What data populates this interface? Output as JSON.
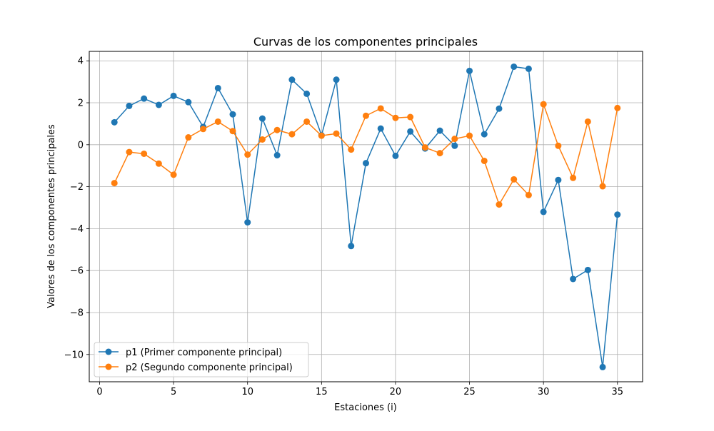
{
  "chart_data": {
    "type": "line",
    "title": "Curvas de los componentes principales",
    "xlabel": "Estaciones (i)",
    "ylabel": "Valores de los componentes principales",
    "xlim": [
      -0.7,
      36.7
    ],
    "ylim": [
      -11.3,
      4.45
    ],
    "xticks": [
      0,
      5,
      10,
      15,
      20,
      25,
      30,
      35
    ],
    "yticks": [
      -10,
      -8,
      -6,
      -4,
      -2,
      0,
      2,
      4
    ],
    "xtick_labels": [
      "0",
      "5",
      "10",
      "15",
      "20",
      "25",
      "30",
      "35"
    ],
    "ytick_labels": [
      "−10",
      "−8",
      "−6",
      "−4",
      "−2",
      "0",
      "2",
      "4"
    ],
    "grid": true,
    "legend_position": "lower-left",
    "x": [
      1,
      2,
      3,
      4,
      5,
      6,
      7,
      8,
      9,
      10,
      11,
      12,
      13,
      14,
      15,
      16,
      17,
      18,
      19,
      20,
      21,
      22,
      23,
      24,
      25,
      26,
      27,
      28,
      29,
      30,
      31,
      32,
      33,
      34,
      35
    ],
    "series": [
      {
        "name": "p1 (Primer componente principal)",
        "color": "#1f77b4",
        "values": [
          1.07,
          1.85,
          2.2,
          1.9,
          2.33,
          2.03,
          0.85,
          2.7,
          1.45,
          -3.7,
          1.25,
          -0.5,
          3.1,
          2.43,
          0.45,
          3.1,
          -4.83,
          -0.88,
          0.77,
          -0.53,
          0.63,
          -0.18,
          0.67,
          -0.05,
          3.52,
          0.5,
          1.72,
          3.72,
          3.62,
          -3.2,
          -1.68,
          -6.4,
          -5.97,
          -10.6,
          -3.33
        ]
      },
      {
        "name": "p2 (Segundo componente principal)",
        "color": "#ff7f0e",
        "values": [
          -1.83,
          -0.35,
          -0.43,
          -0.9,
          -1.43,
          0.35,
          0.75,
          1.1,
          0.65,
          -0.47,
          0.25,
          0.7,
          0.5,
          1.1,
          0.43,
          0.53,
          -0.23,
          1.38,
          1.73,
          1.28,
          1.32,
          -0.13,
          -0.4,
          0.28,
          0.43,
          -0.77,
          -2.85,
          -1.65,
          -2.4,
          1.93,
          -0.05,
          -1.58,
          1.1,
          -1.98,
          1.75
        ]
      }
    ]
  }
}
